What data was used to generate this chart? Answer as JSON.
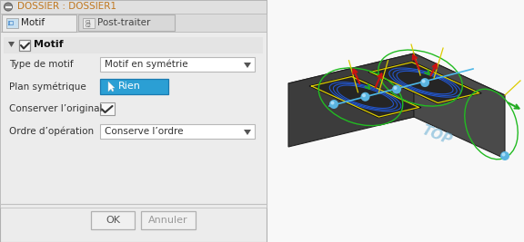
{
  "title_bar_text": "DOSSIER : DOSSIER1",
  "title_bar_fg": "#c07820",
  "tab1_text": "Motif",
  "tab2_text": "Post-traiter",
  "section_label": "Motif",
  "row1_label": "Type de motif",
  "row1_value": "Motif en symétrie",
  "row2_label": "Plan symétrique",
  "row2_value": "Rien",
  "row2_btn_bg": "#2b9fd4",
  "row2_btn_fg": "#ffffff",
  "row3_label": "Conserver l’original",
  "row4_label": "Ordre d’opération",
  "row4_value": "Conserve l’ordre",
  "btn_ok": "OK",
  "btn_cancel": "Annuler",
  "bg_color": "#ececec",
  "dialog_bg": "#ececec",
  "label_color": "#333333",
  "field_bg": "#ffffff",
  "border_color": "#b8b8b8",
  "block_top": "#636363",
  "block_left": "#3c3c3c",
  "block_right": "#4a4a4a",
  "slot_color": "#1e1e1e",
  "blue_line": "#4db8e8",
  "green_ellipse": "#22bb22",
  "blue_path": "#2255cc",
  "yellow_path": "#ddcc00",
  "red_arrow": "#cc1111",
  "green_arrow": "#22aa22",
  "yellow_arrow": "#dddd00",
  "blue_sphere": "#5ab4e0",
  "top_text": "#7ab8d8"
}
